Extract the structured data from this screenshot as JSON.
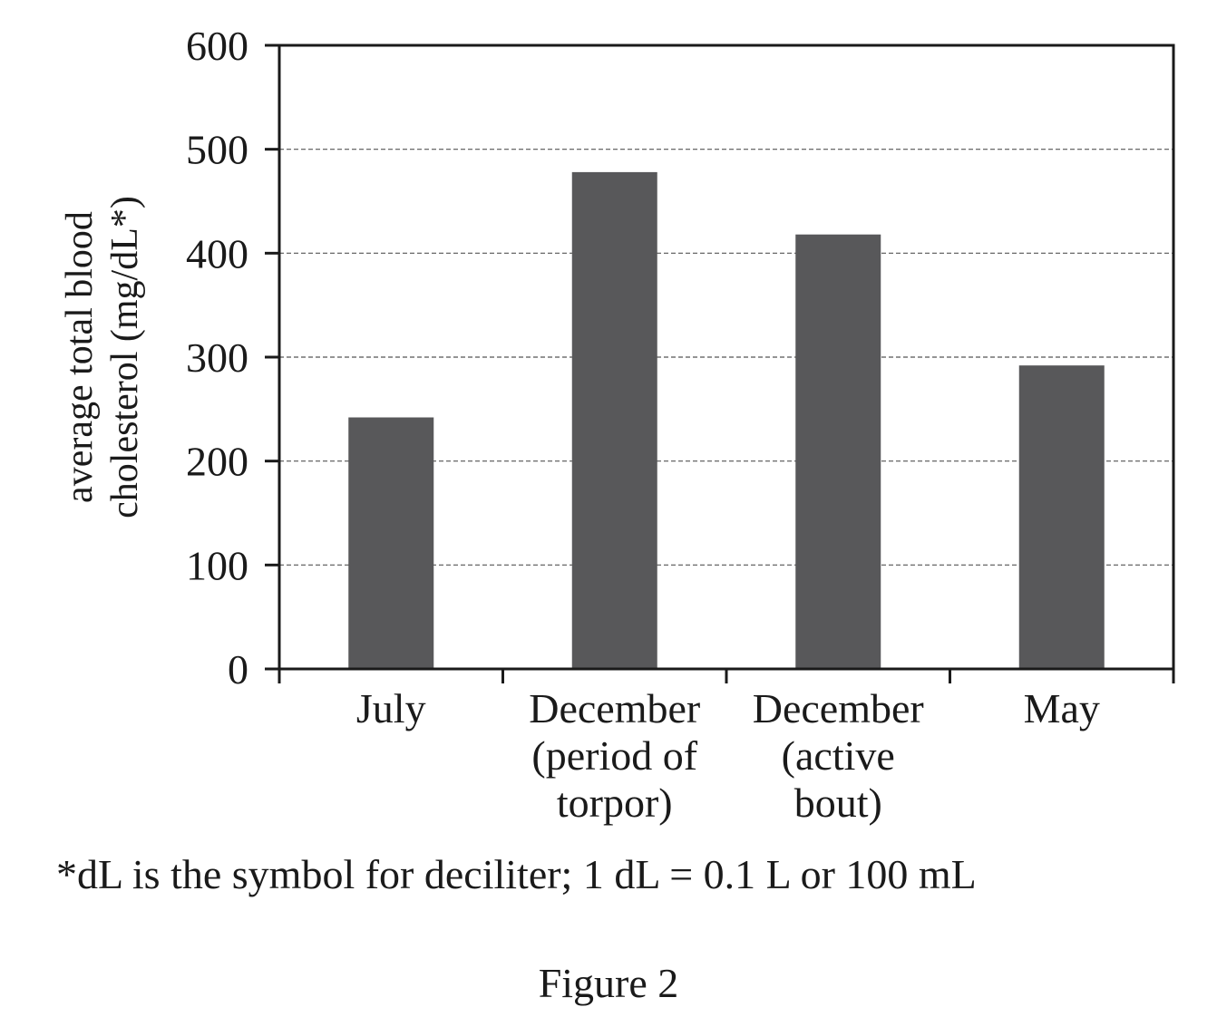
{
  "chart_data": {
    "type": "bar",
    "categories": [
      [
        "July"
      ],
      [
        "December",
        "(period of",
        "torpor)"
      ],
      [
        "December",
        "(active",
        "bout)"
      ],
      [
        "May"
      ]
    ],
    "values": [
      242,
      478,
      418,
      292
    ],
    "ylabel_lines": [
      "average total blood",
      "cholesterol (mg/dL*)"
    ],
    "xlabel": "",
    "ylim": [
      0,
      600
    ],
    "yticks": [
      0,
      100,
      200,
      300,
      400,
      500,
      600
    ],
    "grid": "horizontal dashed",
    "bar_color": "#58585a"
  },
  "footnote": "*dL is the symbol for deciliter; 1 dL = 0.1 L or 100 mL",
  "caption": "Figure 2"
}
